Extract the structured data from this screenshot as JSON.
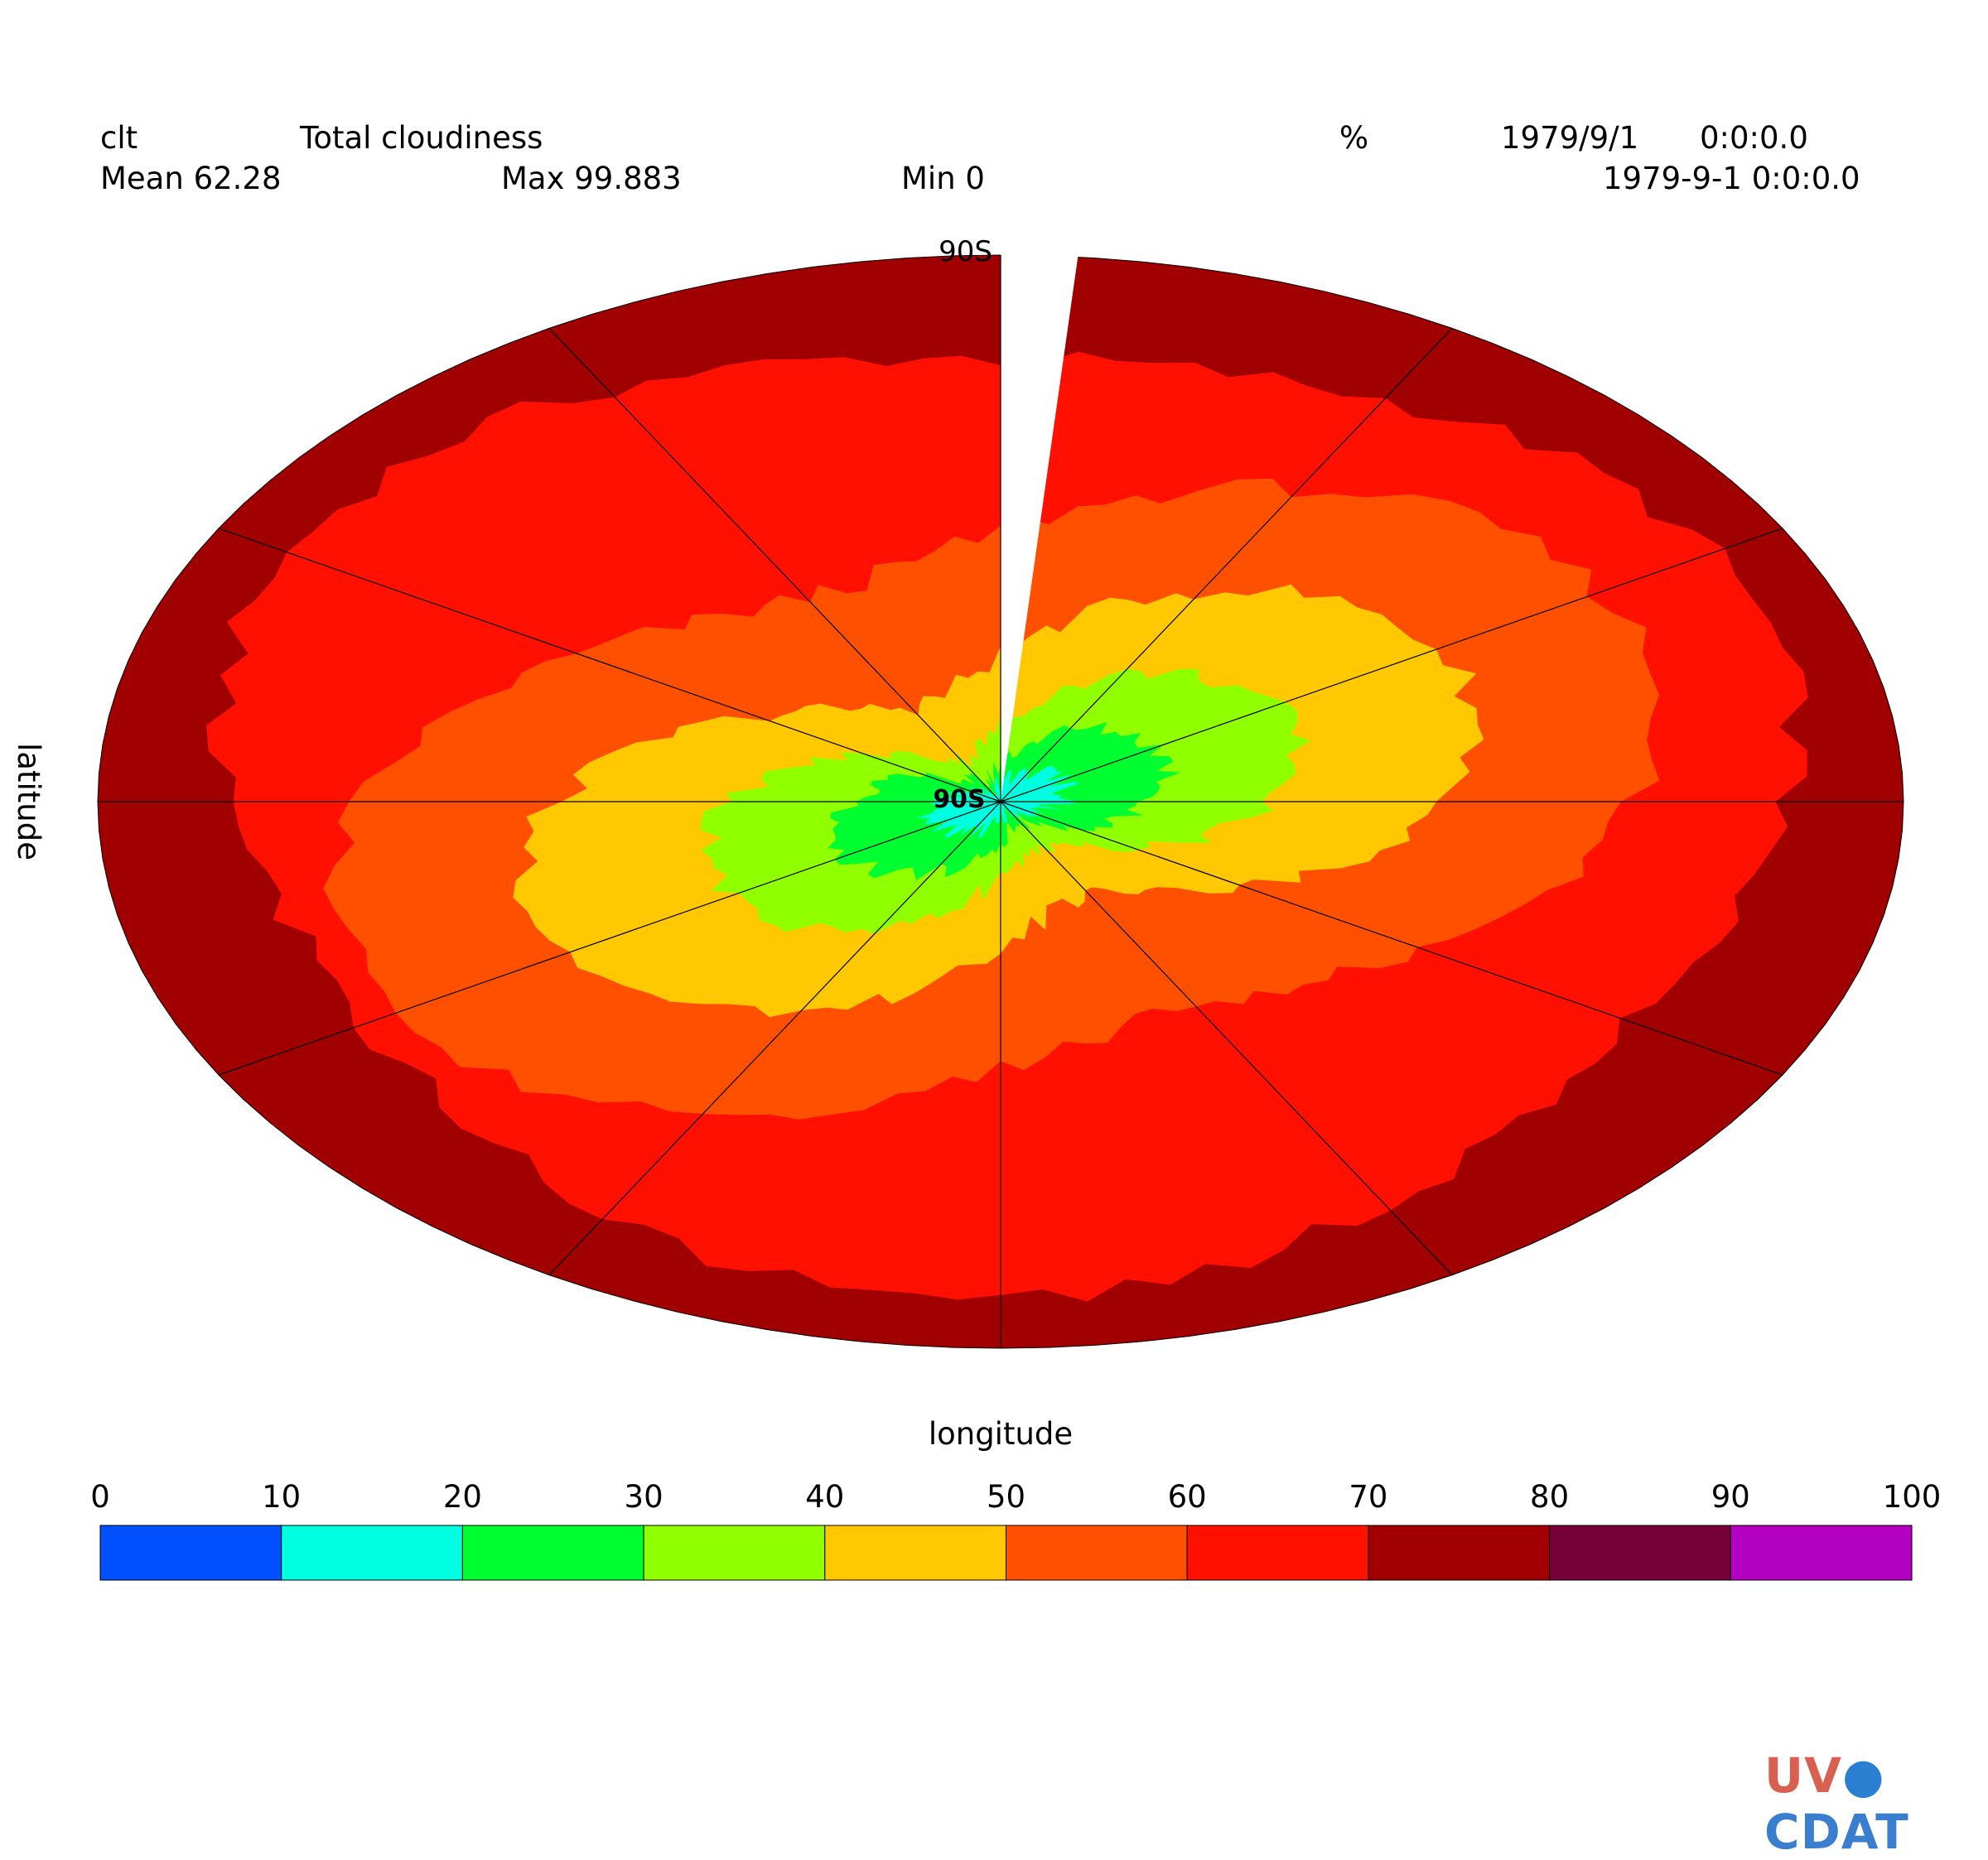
{
  "header": {
    "var_name": "clt",
    "long_name": "Total cloudiness",
    "units": "%",
    "date": "1979/9/1",
    "time": "0:0:0.0",
    "datetime": "1979-9-1 0:0:0.0",
    "mean_label": "Mean 62.28",
    "max_label": "Max 99.883",
    "min_label": "Min 0"
  },
  "logo": {
    "text": "UV-CDAT",
    "part1": "UV",
    "part2": "CDAT"
  },
  "chart_data": {
    "type": "polar-contour",
    "title": "Total cloudiness",
    "xlabel": "longitude",
    "ylabel": "latitude",
    "units": "%",
    "pole_label": "90S",
    "stats": {
      "mean": 62.28,
      "max": 99.883,
      "min": 0
    },
    "levels": [
      0,
      10,
      20,
      30,
      40,
      50,
      60,
      70,
      80,
      90,
      100
    ],
    "level_labels": [
      "0",
      "10",
      "20",
      "30",
      "40",
      "50",
      "60",
      "70",
      "80",
      "90",
      "100"
    ],
    "colors": [
      "#0050ff",
      "#00ffe0",
      "#00ff30",
      "#90ff00",
      "#ffc800",
      "#ff5000",
      "#ff1000",
      "#a00000",
      "#780038",
      "#b400c0"
    ],
    "meridians_deg": [
      0,
      30,
      60,
      90,
      120,
      150,
      180,
      210,
      240,
      270,
      300,
      330
    ],
    "regions_note": "outer ring 70-80, then 60-70, 50-60, 40-50, 30-40, 20-30, 10-20 near center"
  }
}
